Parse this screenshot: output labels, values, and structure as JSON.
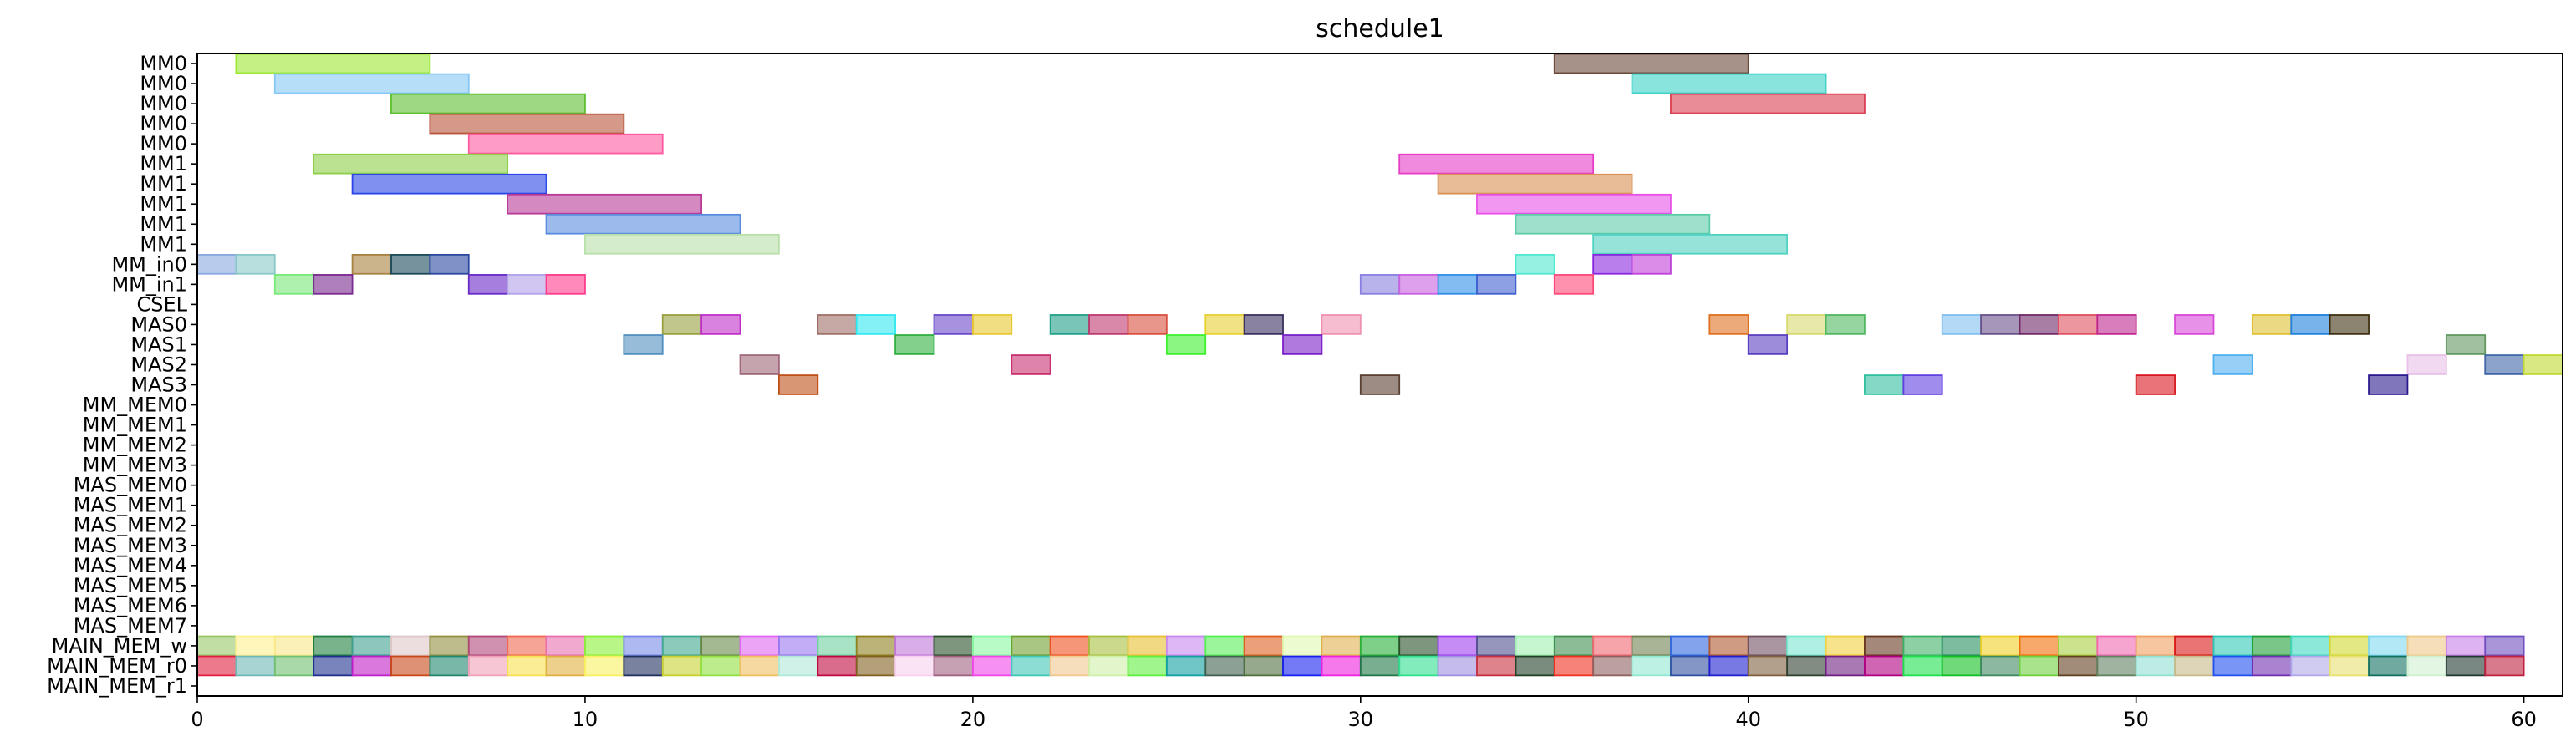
{
  "chart_data": {
    "type": "gantt",
    "title": "schedule1",
    "xlabel": "",
    "ylabel": "",
    "xlim": [
      0,
      61
    ],
    "x_ticks": [
      0,
      10,
      20,
      30,
      40,
      50,
      60
    ],
    "grid": false,
    "rows": [
      "MM0",
      "MM0",
      "MM0",
      "MM0",
      "MM0",
      "MM1",
      "MM1",
      "MM1",
      "MM1",
      "MM1",
      "MM_in0",
      "MM_in1",
      "CSEL",
      "MAS0",
      "MAS1",
      "MAS2",
      "MAS3",
      "MM_MEM0",
      "MM_MEM1",
      "MM_MEM2",
      "MM_MEM3",
      "MAS_MEM0",
      "MAS_MEM1",
      "MAS_MEM2",
      "MAS_MEM3",
      "MAS_MEM4",
      "MAS_MEM5",
      "MAS_MEM6",
      "MAS_MEM7",
      "MAIN_MEM_w",
      "MAIN_MEM_r0",
      "MAIN_MEM_r1"
    ],
    "tasks": [
      {
        "row": 0,
        "start": 1,
        "end": 6,
        "color": "#9be832"
      },
      {
        "row": 0,
        "start": 35,
        "end": 40,
        "color": "#6b4a3a"
      },
      {
        "row": 1,
        "start": 2,
        "end": 7,
        "color": "#86c8f5"
      },
      {
        "row": 1,
        "start": 37,
        "end": 42,
        "color": "#3cd2c8"
      },
      {
        "row": 2,
        "start": 5,
        "end": 10,
        "color": "#5cbf2e"
      },
      {
        "row": 2,
        "start": 38,
        "end": 43,
        "color": "#dc4052"
      },
      {
        "row": 3,
        "start": 6,
        "end": 11,
        "color": "#b8553a"
      },
      {
        "row": 4,
        "start": 7,
        "end": 12,
        "color": "#ff5aa0"
      },
      {
        "row": 5,
        "start": 3,
        "end": 8,
        "color": "#8ccf48"
      },
      {
        "row": 5,
        "start": 31,
        "end": 36,
        "color": "#e63cc8"
      },
      {
        "row": 6,
        "start": 4,
        "end": 9,
        "color": "#2a46e8"
      },
      {
        "row": 6,
        "start": 32,
        "end": 37,
        "color": "#d99050"
      },
      {
        "row": 7,
        "start": 8,
        "end": 13,
        "color": "#b83a98"
      },
      {
        "row": 7,
        "start": 33,
        "end": 38,
        "color": "#e850e8"
      },
      {
        "row": 8,
        "start": 9,
        "end": 14,
        "color": "#5a8ce0"
      },
      {
        "row": 8,
        "start": 34,
        "end": 39,
        "color": "#5ccca8"
      },
      {
        "row": 9,
        "start": 10,
        "end": 15,
        "color": "#b8e0a8"
      },
      {
        "row": 9,
        "start": 36,
        "end": 41,
        "color": "#50d2c0"
      },
      {
        "row": 10,
        "start": 0,
        "end": 1,
        "color": "#88a8e0"
      },
      {
        "row": 10,
        "start": 1,
        "end": 2,
        "color": "#88c8c8"
      },
      {
        "row": 10,
        "start": 4,
        "end": 5,
        "color": "#a88040"
      },
      {
        "row": 10,
        "start": 5,
        "end": 6,
        "color": "#1a4a5a"
      },
      {
        "row": 10,
        "start": 6,
        "end": 7,
        "color": "#2a48a0"
      },
      {
        "row": 10,
        "start": 34,
        "end": 35,
        "color": "#50e8d0"
      },
      {
        "row": 10,
        "start": 36,
        "end": 37,
        "color": "#8a28e0"
      },
      {
        "row": 10,
        "start": 37,
        "end": 38,
        "color": "#c040d8"
      },
      {
        "row": 11,
        "start": 2,
        "end": 3,
        "color": "#78e878"
      },
      {
        "row": 11,
        "start": 3,
        "end": 4,
        "color": "#7a2a90"
      },
      {
        "row": 11,
        "start": 7,
        "end": 8,
        "color": "#6a2ac8"
      },
      {
        "row": 11,
        "start": 8,
        "end": 9,
        "color": "#b0a0e8"
      },
      {
        "row": 11,
        "start": 9,
        "end": 10,
        "color": "#ff3c8c"
      },
      {
        "row": 11,
        "start": 30,
        "end": 31,
        "color": "#8a80e0"
      },
      {
        "row": 11,
        "start": 31,
        "end": 32,
        "color": "#c860e0"
      },
      {
        "row": 11,
        "start": 32,
        "end": 33,
        "color": "#3090e8"
      },
      {
        "row": 11,
        "start": 33,
        "end": 34,
        "color": "#4060d0"
      },
      {
        "row": 11,
        "start": 35,
        "end": 36,
        "color": "#ff4878"
      },
      {
        "row": 13,
        "start": 12,
        "end": 13,
        "color": "#98a040"
      },
      {
        "row": 13,
        "start": 13,
        "end": 14,
        "color": "#c030c8"
      },
      {
        "row": 13,
        "start": 16,
        "end": 17,
        "color": "#a07068"
      },
      {
        "row": 13,
        "start": 17,
        "end": 18,
        "color": "#30e8f0"
      },
      {
        "row": 13,
        "start": 19,
        "end": 20,
        "color": "#6a4ac8"
      },
      {
        "row": 13,
        "start": 20,
        "end": 21,
        "color": "#e8c830"
      },
      {
        "row": 13,
        "start": 22,
        "end": 23,
        "color": "#20a088"
      },
      {
        "row": 13,
        "start": 23,
        "end": 24,
        "color": "#c03870"
      },
      {
        "row": 13,
        "start": 24,
        "end": 25,
        "color": "#d85040"
      },
      {
        "row": 13,
        "start": 26,
        "end": 27,
        "color": "#e8d030"
      },
      {
        "row": 13,
        "start": 27,
        "end": 28,
        "color": "#3a3060"
      },
      {
        "row": 13,
        "start": 29,
        "end": 30,
        "color": "#f090b0"
      },
      {
        "row": 13,
        "start": 39,
        "end": 40,
        "color": "#e07020"
      },
      {
        "row": 13,
        "start": 41,
        "end": 42,
        "color": "#d8d870"
      },
      {
        "row": 13,
        "start": 42,
        "end": 43,
        "color": "#50b860"
      },
      {
        "row": 13,
        "start": 45,
        "end": 46,
        "color": "#80c0f0"
      },
      {
        "row": 13,
        "start": 46,
        "end": 47,
        "color": "#6a508a"
      },
      {
        "row": 13,
        "start": 47,
        "end": 48,
        "color": "#702868"
      },
      {
        "row": 13,
        "start": 48,
        "end": 49,
        "color": "#e05060"
      },
      {
        "row": 13,
        "start": 49,
        "end": 50,
        "color": "#c02890"
      },
      {
        "row": 13,
        "start": 51,
        "end": 52,
        "color": "#d848d8"
      },
      {
        "row": 13,
        "start": 53,
        "end": 54,
        "color": "#e0c030"
      },
      {
        "row": 13,
        "start": 54,
        "end": 55,
        "color": "#2080e0"
      },
      {
        "row": 13,
        "start": 55,
        "end": 56,
        "color": "#403010"
      },
      {
        "row": 14,
        "start": 11,
        "end": 12,
        "color": "#5090c0"
      },
      {
        "row": 14,
        "start": 18,
        "end": 19,
        "color": "#30b040"
      },
      {
        "row": 14,
        "start": 25,
        "end": 26,
        "color": "#40f030"
      },
      {
        "row": 14,
        "start": 28,
        "end": 29,
        "color": "#7a20c8"
      },
      {
        "row": 14,
        "start": 40,
        "end": 41,
        "color": "#5a40c0"
      },
      {
        "row": 14,
        "start": 58,
        "end": 59,
        "color": "#609860"
      },
      {
        "row": 15,
        "start": 14,
        "end": 15,
        "color": "#a06878"
      },
      {
        "row": 15,
        "start": 21,
        "end": 22,
        "color": "#c83070"
      },
      {
        "row": 15,
        "start": 52,
        "end": 53,
        "color": "#50b0f0"
      },
      {
        "row": 15,
        "start": 57,
        "end": 58,
        "color": "#e8c0e8"
      },
      {
        "row": 15,
        "start": 59,
        "end": 60,
        "color": "#4068a8"
      },
      {
        "row": 15,
        "start": 60,
        "end": 61,
        "color": "#c0d830"
      },
      {
        "row": 16,
        "start": 15,
        "end": 16,
        "color": "#c05018"
      },
      {
        "row": 16,
        "start": 30,
        "end": 31,
        "color": "#5a4030"
      },
      {
        "row": 16,
        "start": 43,
        "end": 44,
        "color": "#30c0a0"
      },
      {
        "row": 16,
        "start": 44,
        "end": 45,
        "color": "#6040e0"
      },
      {
        "row": 16,
        "start": 50,
        "end": 51,
        "color": "#d81820"
      },
      {
        "row": 16,
        "start": 56,
        "end": 57,
        "color": "#2a1a90"
      }
    ],
    "mem_rows": {
      "w_row": 29,
      "r0_row": 30,
      "r1_row": 31,
      "w_colors": [
        "#98c868",
        "#fff090",
        "#f8e888",
        "#208040",
        "#40a090",
        "#e0c8c8",
        "#909040",
        "#b04878",
        "#f06850",
        "#e870b0",
        "#88f038",
        "#7888e8",
        "#40a890",
        "#688848",
        "#e068f0",
        "#9878f0",
        "#70d0a0",
        "#908020",
        "#c078d8",
        "#285028",
        "#88f8a0",
        "#70a030",
        "#f05020",
        "#a8c040",
        "#e8c030",
        "#c888f0",
        "#58f058",
        "#e06020",
        "#e0f8b0",
        "#e0b050",
        "#28b038",
        "#285028",
        "#a040f0",
        "#505090",
        "#a0f0b0",
        "#409050",
        "#f06870",
        "#708050",
        "#3068e0",
        "#b05830",
        "#705060",
        "#78e8d0",
        "#f0d040",
        "#683820",
        "#40b068",
        "#289060",
        "#f0d028",
        "#f07008",
        "#a8d040",
        "#f068b0",
        "#f0a060",
        "#d81818",
        "#30c8b8",
        "#20a038",
        "#40d8c0",
        "#d0d830",
        "#80d8f0",
        "#f0c888",
        "#c880e8",
        "#7050c0"
      ],
      "r0_colors": [
        "#e02040",
        "#70b8b8",
        "#70c070",
        "#203090",
        "#c020c8",
        "#c84818",
        "#208870",
        "#f0a0b8",
        "#f8e050",
        "#e0b040",
        "#f8f060",
        "#203060",
        "#c8d030",
        "#90e040",
        "#f0c060",
        "#b0e8d8",
        "#c00840",
        "#806020",
        "#f8d0f0",
        "#a06080",
        "#f048e8",
        "#40c8b8",
        "#f0c890",
        "#d0f0a8",
        "#60f040",
        "#10a0a0",
        "#406050",
        "#507040",
        "#1820f0",
        "#f020e0",
        "#207848",
        "#30e090",
        "#a090e0",
        "#c83040",
        "#204028",
        "#f03020",
        "#906060",
        "#90e8d0",
        "#3050a0",
        "#2020d0",
        "#806040",
        "#304030",
        "#702080",
        "#b00080",
        "#20e050",
        "#10c020",
        "#408860",
        "#70d040",
        "#604020",
        "#608060",
        "#90e0d0",
        "#c8b888",
        "#2050f0",
        "#7030b0",
        "#b0a8e8",
        "#e8e070",
        "#107060",
        "#d0f0d0",
        "#203830",
        "#c02040"
      ]
    }
  }
}
